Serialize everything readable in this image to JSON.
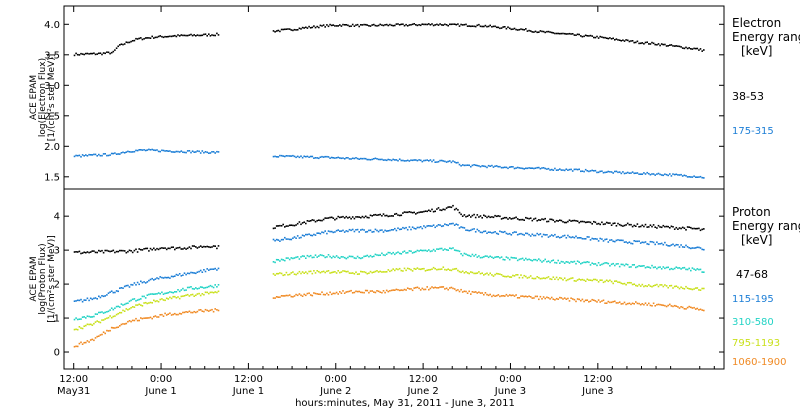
{
  "chart_data": [
    {
      "type": "scatter",
      "ylabel_lines": [
        "ACE EPAM",
        "log(Electron Flux)",
        "[1/(cm²s ster MeV)]"
      ],
      "ylim": [
        1.3,
        4.3
      ],
      "yticks": [
        "1.5",
        "2.0",
        "2.5",
        "3.0",
        "3.5",
        "4.0"
      ],
      "legend_title": [
        "Electron",
        "Energy range",
        "[keV]"
      ],
      "series": [
        {
          "name": "38-53",
          "color": "#000000",
          "points": [
            [
              0,
              3.52
            ],
            [
              5,
              3.53
            ],
            [
              8,
              3.55
            ],
            [
              9,
              3.65
            ],
            [
              11,
              3.72
            ],
            [
              13,
              3.77
            ],
            [
              16,
              3.8
            ],
            [
              20,
              3.82
            ],
            [
              24,
              3.83
            ],
            [
              28,
              3.84
            ],
            [
              30,
              3.85
            ],
            [
              41,
              3.9
            ],
            [
              45,
              3.93
            ],
            [
              48,
              3.96
            ],
            [
              52,
              3.99
            ],
            [
              55,
              4.0
            ],
            [
              60,
              3.99
            ],
            [
              64,
              4.0
            ],
            [
              68,
              4.0
            ],
            [
              72,
              4.01
            ],
            [
              76,
              4.01
            ],
            [
              78,
              4.0
            ],
            [
              80,
              4.0
            ],
            [
              84,
              3.99
            ],
            [
              88,
              3.96
            ],
            [
              92,
              3.93
            ],
            [
              96,
              3.89
            ],
            [
              100,
              3.86
            ],
            [
              104,
              3.83
            ],
            [
              108,
              3.8
            ],
            [
              112,
              3.76
            ],
            [
              116,
              3.72
            ],
            [
              120,
              3.69
            ],
            [
              124,
              3.65
            ],
            [
              128,
              3.61
            ],
            [
              130,
              3.58
            ]
          ]
        },
        {
          "name": "175-315",
          "color": "#1c7ed6",
          "points": [
            [
              0,
              1.85
            ],
            [
              5,
              1.87
            ],
            [
              8,
              1.88
            ],
            [
              11,
              1.93
            ],
            [
              14,
              1.95
            ],
            [
              18,
              1.94
            ],
            [
              22,
              1.93
            ],
            [
              26,
              1.92
            ],
            [
              30,
              1.91
            ],
            [
              41,
              1.85
            ],
            [
              46,
              1.84
            ],
            [
              52,
              1.83
            ],
            [
              58,
              1.81
            ],
            [
              64,
              1.8
            ],
            [
              70,
              1.78
            ],
            [
              74,
              1.77
            ],
            [
              78,
              1.76
            ],
            [
              80,
              1.7
            ],
            [
              86,
              1.68
            ],
            [
              92,
              1.66
            ],
            [
              98,
              1.64
            ],
            [
              104,
              1.62
            ],
            [
              110,
              1.59
            ],
            [
              116,
              1.57
            ],
            [
              122,
              1.55
            ],
            [
              128,
              1.52
            ],
            [
              130,
              1.5
            ]
          ]
        }
      ]
    },
    {
      "type": "scatter",
      "ylabel_lines": [
        "ACE EPAM",
        "log(Proton Flux)",
        "[1/(cm²s ster MeV)]"
      ],
      "ylim": [
        -0.5,
        4.8
      ],
      "yticks": [
        "0",
        "1",
        "2",
        "3",
        "4"
      ],
      "legend_title": [
        "Proton",
        "Energy range",
        "[keV]"
      ],
      "x_tick_labels": [
        [
          "12:00",
          "May31"
        ],
        [
          "0:00",
          "June 1"
        ],
        [
          "12:00",
          "June 1"
        ],
        [
          "0:00",
          "June 2"
        ],
        [
          "12:00",
          "June 2"
        ],
        [
          "0:00",
          "June 3"
        ],
        [
          "12:00",
          "June 3"
        ]
      ],
      "xlabel": "hours:minutes, May 31, 2011 - June  3, 2011",
      "series": [
        {
          "name": "47-68",
          "color": "#000000",
          "points": [
            [
              0,
              2.95
            ],
            [
              6,
              2.97
            ],
            [
              12,
              3.0
            ],
            [
              16,
              3.05
            ],
            [
              18,
              3.1
            ],
            [
              20,
              3.08
            ],
            [
              24,
              3.1
            ],
            [
              28,
              3.15
            ],
            [
              30,
              3.1
            ],
            [
              41,
              3.7
            ],
            [
              46,
              3.8
            ],
            [
              52,
              3.95
            ],
            [
              58,
              4.0
            ],
            [
              64,
              4.05
            ],
            [
              68,
              4.1
            ],
            [
              72,
              4.15
            ],
            [
              76,
              4.25
            ],
            [
              78,
              4.3
            ],
            [
              80,
              4.05
            ],
            [
              86,
              4.0
            ],
            [
              92,
              3.95
            ],
            [
              98,
              3.9
            ],
            [
              104,
              3.85
            ],
            [
              110,
              3.8
            ],
            [
              116,
              3.75
            ],
            [
              122,
              3.7
            ],
            [
              128,
              3.65
            ],
            [
              130,
              3.6
            ]
          ]
        },
        {
          "name": "115-195",
          "color": "#1c7ed6",
          "points": [
            [
              0,
              1.5
            ],
            [
              4,
              1.6
            ],
            [
              8,
              1.8
            ],
            [
              12,
              2.0
            ],
            [
              16,
              2.15
            ],
            [
              20,
              2.25
            ],
            [
              24,
              2.35
            ],
            [
              28,
              2.45
            ],
            [
              30,
              2.5
            ],
            [
              41,
              3.3
            ],
            [
              46,
              3.4
            ],
            [
              52,
              3.55
            ],
            [
              58,
              3.6
            ],
            [
              64,
              3.6
            ],
            [
              68,
              3.65
            ],
            [
              72,
              3.7
            ],
            [
              76,
              3.75
            ],
            [
              78,
              3.8
            ],
            [
              80,
              3.65
            ],
            [
              86,
              3.55
            ],
            [
              92,
              3.5
            ],
            [
              98,
              3.45
            ],
            [
              104,
              3.4
            ],
            [
              110,
              3.3
            ],
            [
              116,
              3.25
            ],
            [
              122,
              3.2
            ],
            [
              128,
              3.1
            ],
            [
              130,
              3.05
            ]
          ]
        },
        {
          "name": "310-580",
          "color": "#22d3c5",
          "points": [
            [
              0,
              1.0
            ],
            [
              4,
              1.1
            ],
            [
              8,
              1.3
            ],
            [
              12,
              1.55
            ],
            [
              16,
              1.7
            ],
            [
              20,
              1.8
            ],
            [
              24,
              1.9
            ],
            [
              28,
              1.95
            ],
            [
              30,
              2.0
            ],
            [
              41,
              2.7
            ],
            [
              46,
              2.8
            ],
            [
              52,
              2.85
            ],
            [
              58,
              2.8
            ],
            [
              64,
              2.9
            ],
            [
              68,
              2.95
            ],
            [
              72,
              3.0
            ],
            [
              76,
              3.05
            ],
            [
              78,
              3.05
            ],
            [
              80,
              2.9
            ],
            [
              86,
              2.8
            ],
            [
              92,
              2.75
            ],
            [
              98,
              2.7
            ],
            [
              104,
              2.65
            ],
            [
              110,
              2.6
            ],
            [
              116,
              2.55
            ],
            [
              122,
              2.5
            ],
            [
              128,
              2.45
            ],
            [
              130,
              2.4
            ]
          ]
        },
        {
          "name": "795-1193",
          "color": "#c9e01c",
          "points": [
            [
              0,
              0.7
            ],
            [
              4,
              0.85
            ],
            [
              8,
              1.1
            ],
            [
              12,
              1.35
            ],
            [
              16,
              1.5
            ],
            [
              20,
              1.6
            ],
            [
              24,
              1.7
            ],
            [
              28,
              1.75
            ],
            [
              30,
              1.8
            ],
            [
              41,
              2.3
            ],
            [
              46,
              2.35
            ],
            [
              52,
              2.4
            ],
            [
              58,
              2.35
            ],
            [
              64,
              2.4
            ],
            [
              68,
              2.45
            ],
            [
              72,
              2.45
            ],
            [
              76,
              2.5
            ],
            [
              78,
              2.45
            ],
            [
              80,
              2.4
            ],
            [
              86,
              2.3
            ],
            [
              92,
              2.25
            ],
            [
              98,
              2.2
            ],
            [
              104,
              2.15
            ],
            [
              110,
              2.1
            ],
            [
              116,
              2.0
            ],
            [
              122,
              1.95
            ],
            [
              128,
              1.9
            ],
            [
              130,
              1.85
            ]
          ]
        },
        {
          "name": "1060-1900",
          "color": "#f08a24",
          "points": [
            [
              0,
              0.2
            ],
            [
              4,
              0.4
            ],
            [
              8,
              0.75
            ],
            [
              12,
              0.95
            ],
            [
              16,
              1.05
            ],
            [
              20,
              1.15
            ],
            [
              24,
              1.2
            ],
            [
              28,
              1.25
            ],
            [
              30,
              1.25
            ],
            [
              41,
              1.65
            ],
            [
              46,
              1.7
            ],
            [
              52,
              1.75
            ],
            [
              58,
              1.8
            ],
            [
              64,
              1.8
            ],
            [
              68,
              1.85
            ],
            [
              72,
              1.9
            ],
            [
              76,
              1.9
            ],
            [
              78,
              1.9
            ],
            [
              80,
              1.8
            ],
            [
              86,
              1.7
            ],
            [
              92,
              1.65
            ],
            [
              98,
              1.6
            ],
            [
              104,
              1.55
            ],
            [
              110,
              1.5
            ],
            [
              116,
              1.45
            ],
            [
              122,
              1.4
            ],
            [
              128,
              1.3
            ],
            [
              130,
              1.25
            ]
          ]
        }
      ]
    }
  ]
}
